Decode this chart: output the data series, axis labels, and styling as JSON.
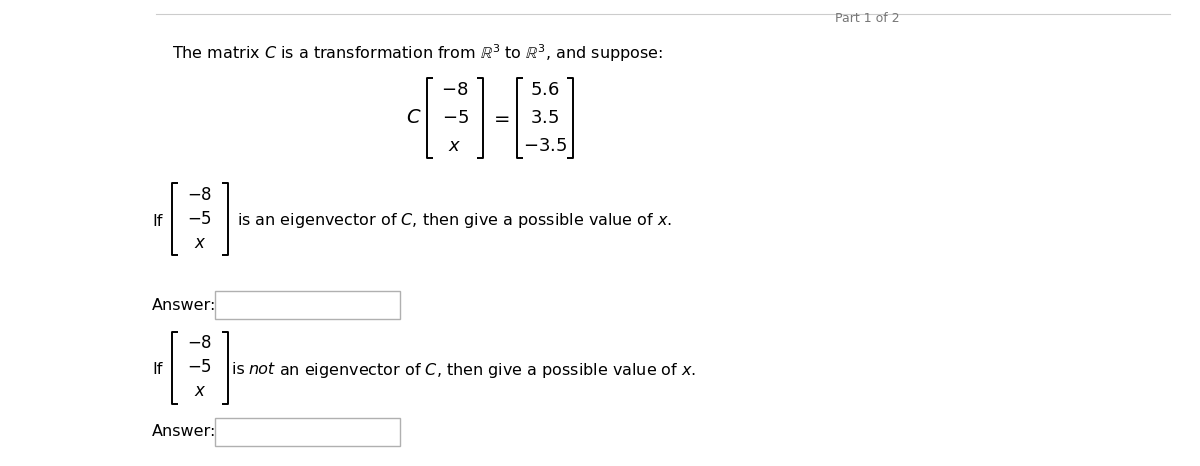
{
  "bg_color": "#ffffff",
  "text_color": "#000000",
  "part_label": "Part 1 of 2",
  "main_text": "The matrix $C$ is a transformation from $\\mathbb{R}^3$ to $\\mathbb{R}^3$, and suppose:",
  "if_text_1": " is an eigenvector of $C$, then give a possible value of $x$.",
  "if_text_2_pre": " is ",
  "if_text_2_not": "not",
  "if_text_2_post": " an eigenvector of $C$, then give a possible value of $x$.",
  "answer_label": "Answer:",
  "line_color": "#cccccc",
  "part_label_color": "#777777",
  "math_color": "#333333",
  "text_font_size": 11.5,
  "math_font_size": 13
}
